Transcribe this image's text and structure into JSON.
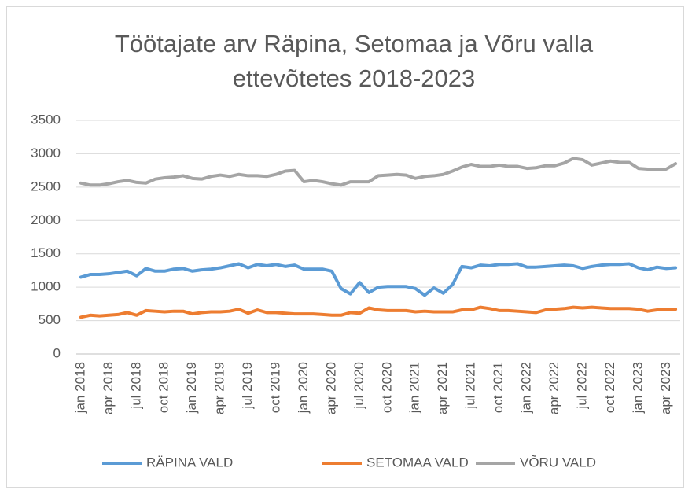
{
  "chart_data": {
    "type": "line",
    "title": "Töötajate arv Räpina, Setomaa ja Võru valla ettevõtetes 2018-2023",
    "categories": [
      "jan 2018",
      null,
      null,
      "apr 2018",
      null,
      null,
      "jul 2018",
      null,
      null,
      "oct 2018",
      null,
      null,
      "jan 2019",
      null,
      null,
      "apr 2019",
      null,
      null,
      "jul 2019",
      null,
      null,
      "oct 2019",
      null,
      null,
      "jan 2020",
      null,
      null,
      "apr 2020",
      null,
      null,
      "jul 2020",
      null,
      null,
      "oct 2020",
      null,
      null,
      "jan 2021",
      null,
      null,
      "apr 2021",
      null,
      null,
      "jul 2021",
      null,
      null,
      "oct 2021",
      null,
      null,
      "jan 2022",
      null,
      null,
      "apr 2022",
      null,
      null,
      "jul 2022",
      null,
      null,
      "oct 2022",
      null,
      null,
      "jan 2023",
      null,
      null,
      "apr 2023",
      null
    ],
    "series": [
      {
        "name": "RÄPINA VALD",
        "color": "#5b9bd5",
        "values": [
          1150,
          1190,
          1190,
          1200,
          1220,
          1240,
          1170,
          1280,
          1240,
          1240,
          1270,
          1280,
          1240,
          1260,
          1270,
          1290,
          1320,
          1350,
          1290,
          1340,
          1320,
          1340,
          1310,
          1330,
          1270,
          1270,
          1270,
          1240,
          980,
          900,
          1070,
          920,
          1000,
          1010,
          1010,
          1010,
          980,
          880,
          990,
          910,
          1040,
          1310,
          1290,
          1330,
          1320,
          1340,
          1340,
          1350,
          1300,
          1300,
          1310,
          1320,
          1330,
          1320,
          1280,
          1310,
          1330,
          1340,
          1340,
          1350,
          1290,
          1260,
          1300,
          1280,
          1290
        ]
      },
      {
        "name": "SETOMAA VALD",
        "color": "#ed7d31",
        "values": [
          550,
          580,
          570,
          580,
          590,
          620,
          580,
          650,
          640,
          630,
          640,
          640,
          600,
          620,
          630,
          630,
          640,
          670,
          610,
          660,
          620,
          620,
          610,
          600,
          600,
          600,
          590,
          580,
          580,
          620,
          610,
          690,
          660,
          650,
          650,
          650,
          630,
          640,
          630,
          630,
          630,
          660,
          660,
          700,
          680,
          650,
          650,
          640,
          630,
          620,
          660,
          670,
          680,
          700,
          690,
          700,
          690,
          680,
          680,
          680,
          670,
          640,
          660,
          660,
          670
        ]
      },
      {
        "name": "VÕRU VALD",
        "color": "#a5a5a5",
        "values": [
          2560,
          2530,
          2530,
          2550,
          2580,
          2600,
          2570,
          2560,
          2620,
          2640,
          2650,
          2670,
          2630,
          2620,
          2660,
          2680,
          2660,
          2690,
          2670,
          2670,
          2660,
          2690,
          2740,
          2750,
          2580,
          2600,
          2580,
          2550,
          2530,
          2580,
          2580,
          2580,
          2670,
          2680,
          2690,
          2680,
          2630,
          2660,
          2670,
          2690,
          2740,
          2800,
          2840,
          2810,
          2810,
          2830,
          2810,
          2810,
          2780,
          2790,
          2820,
          2820,
          2860,
          2930,
          2910,
          2830,
          2860,
          2890,
          2870,
          2870,
          2780,
          2770,
          2760,
          2770,
          2850
        ]
      }
    ],
    "ylim": [
      0,
      3500
    ],
    "yticks": [
      0,
      500,
      1000,
      1500,
      2000,
      2500,
      3000,
      3500
    ],
    "grid": true,
    "legend": "bottom"
  }
}
